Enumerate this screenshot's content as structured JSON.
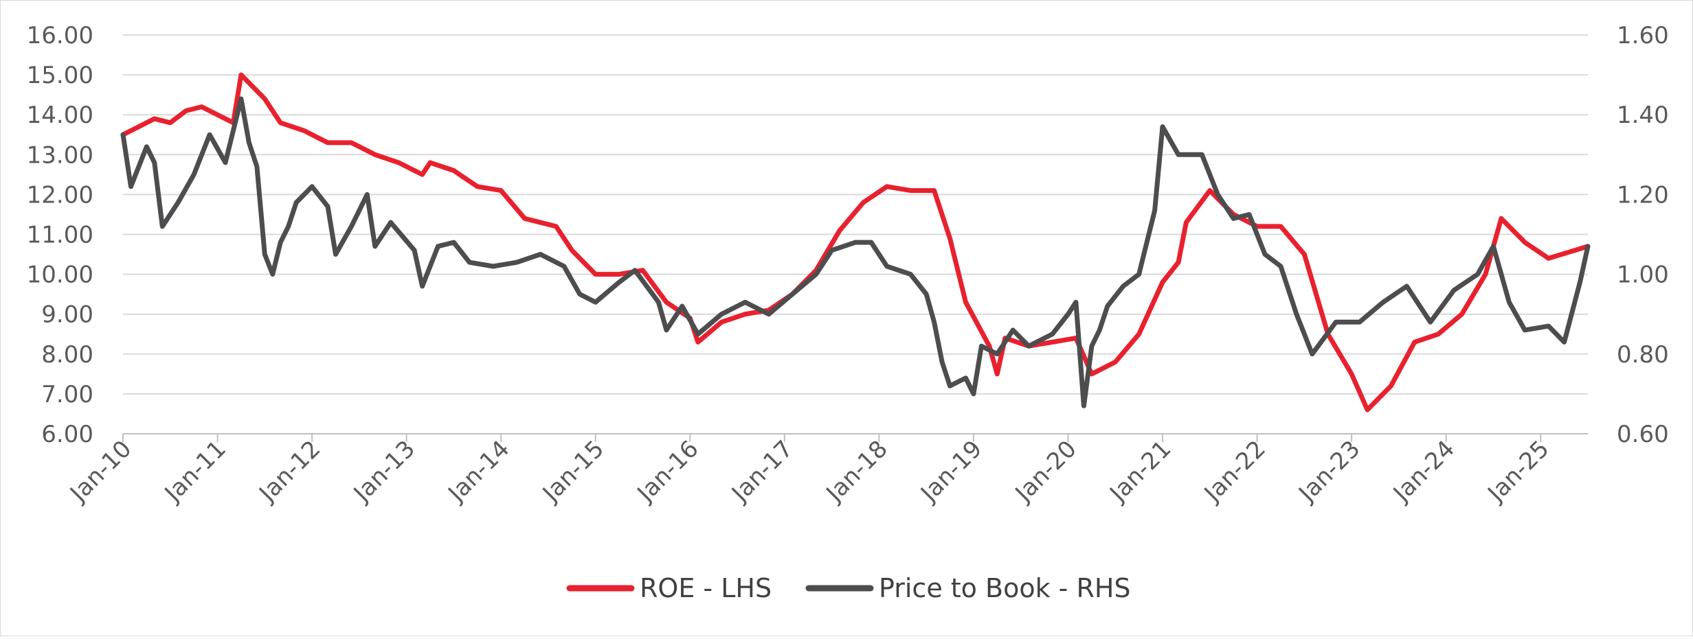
{
  "chart_data": {
    "type": "line",
    "title": "",
    "x_tick_labels": [
      "Jan-10",
      "Jan-11",
      "Jan-12",
      "Jan-13",
      "Jan-14",
      "Jan-15",
      "Jan-16",
      "Jan-17",
      "Jan-18",
      "Jan-19",
      "Jan-20",
      "Jan-21",
      "Jan-22",
      "Jan-23",
      "Jan-24",
      "Jan-25"
    ],
    "x_range": [
      "2010-01",
      "2025-07"
    ],
    "y_left": {
      "ticks": [
        "6.00",
        "7.00",
        "8.00",
        "9.00",
        "10.00",
        "11.00",
        "12.00",
        "13.00",
        "14.00",
        "15.00",
        "16.00"
      ],
      "ylim": [
        6,
        16
      ]
    },
    "y_right": {
      "ticks": [
        "0.60",
        "0.80",
        "1.00",
        "1.20",
        "1.40",
        "1.60"
      ],
      "ylim": [
        0.6,
        1.6
      ]
    },
    "grid": "horizontal",
    "legend_position": "bottom-center",
    "series": [
      {
        "name": "ROE - LHS",
        "axis": "left",
        "color": "#e8212e",
        "points": [
          [
            "2010-01",
            13.5
          ],
          [
            "2010-03",
            13.7
          ],
          [
            "2010-05",
            13.9
          ],
          [
            "2010-07",
            13.8
          ],
          [
            "2010-09",
            14.1
          ],
          [
            "2010-11",
            14.2
          ],
          [
            "2011-01",
            14.0
          ],
          [
            "2011-03",
            13.8
          ],
          [
            "2011-04",
            15.0
          ],
          [
            "2011-05",
            14.8
          ],
          [
            "2011-07",
            14.4
          ],
          [
            "2011-09",
            13.8
          ],
          [
            "2011-12",
            13.6
          ],
          [
            "2012-03",
            13.3
          ],
          [
            "2012-06",
            13.3
          ],
          [
            "2012-09",
            13.0
          ],
          [
            "2012-12",
            12.8
          ],
          [
            "2013-03",
            12.5
          ],
          [
            "2013-04",
            12.8
          ],
          [
            "2013-07",
            12.6
          ],
          [
            "2013-10",
            12.2
          ],
          [
            "2014-01",
            12.1
          ],
          [
            "2014-04",
            11.4
          ],
          [
            "2014-08",
            11.2
          ],
          [
            "2014-10",
            10.6
          ],
          [
            "2015-01",
            10.0
          ],
          [
            "2015-04",
            10.0
          ],
          [
            "2015-07",
            10.1
          ],
          [
            "2015-10",
            9.3
          ],
          [
            "2016-01",
            8.9
          ],
          [
            "2016-02",
            8.3
          ],
          [
            "2016-05",
            8.8
          ],
          [
            "2016-08",
            9.0
          ],
          [
            "2016-11",
            9.1
          ],
          [
            "2017-02",
            9.5
          ],
          [
            "2017-05",
            10.1
          ],
          [
            "2017-08",
            11.1
          ],
          [
            "2017-11",
            11.8
          ],
          [
            "2018-02",
            12.2
          ],
          [
            "2018-05",
            12.1
          ],
          [
            "2018-08",
            12.1
          ],
          [
            "2018-10",
            10.9
          ],
          [
            "2018-12",
            9.3
          ],
          [
            "2019-03",
            8.2
          ],
          [
            "2019-04",
            7.5
          ],
          [
            "2019-05",
            8.4
          ],
          [
            "2019-08",
            8.2
          ],
          [
            "2019-11",
            8.3
          ],
          [
            "2020-02",
            8.4
          ],
          [
            "2020-04",
            7.5
          ],
          [
            "2020-07",
            7.8
          ],
          [
            "2020-10",
            8.5
          ],
          [
            "2021-01",
            9.8
          ],
          [
            "2021-03",
            10.3
          ],
          [
            "2021-04",
            11.3
          ],
          [
            "2021-07",
            12.1
          ],
          [
            "2021-10",
            11.5
          ],
          [
            "2022-01",
            11.2
          ],
          [
            "2022-04",
            11.2
          ],
          [
            "2022-07",
            10.5
          ],
          [
            "2022-10",
            8.5
          ],
          [
            "2023-01",
            7.5
          ],
          [
            "2023-03",
            6.6
          ],
          [
            "2023-06",
            7.2
          ],
          [
            "2023-09",
            8.3
          ],
          [
            "2023-12",
            8.5
          ],
          [
            "2024-03",
            9.0
          ],
          [
            "2024-06",
            10.0
          ],
          [
            "2024-08",
            11.4
          ],
          [
            "2024-11",
            10.8
          ],
          [
            "2025-02",
            10.4
          ],
          [
            "2025-07",
            10.7
          ]
        ]
      },
      {
        "name": "Price to Book - RHS",
        "axis": "right",
        "color": "#4d4d4f",
        "points": [
          [
            "2010-01",
            1.35
          ],
          [
            "2010-02",
            1.22
          ],
          [
            "2010-04",
            1.32
          ],
          [
            "2010-05",
            1.28
          ],
          [
            "2010-06",
            1.12
          ],
          [
            "2010-08",
            1.18
          ],
          [
            "2010-10",
            1.25
          ],
          [
            "2010-12",
            1.35
          ],
          [
            "2011-02",
            1.28
          ],
          [
            "2011-04",
            1.44
          ],
          [
            "2011-05",
            1.33
          ],
          [
            "2011-06",
            1.27
          ],
          [
            "2011-07",
            1.05
          ],
          [
            "2011-08",
            1.0
          ],
          [
            "2011-09",
            1.08
          ],
          [
            "2011-10",
            1.12
          ],
          [
            "2011-11",
            1.18
          ],
          [
            "2012-01",
            1.22
          ],
          [
            "2012-03",
            1.17
          ],
          [
            "2012-04",
            1.05
          ],
          [
            "2012-06",
            1.12
          ],
          [
            "2012-08",
            1.2
          ],
          [
            "2012-09",
            1.07
          ],
          [
            "2012-11",
            1.13
          ],
          [
            "2013-02",
            1.06
          ],
          [
            "2013-03",
            0.97
          ],
          [
            "2013-05",
            1.07
          ],
          [
            "2013-07",
            1.08
          ],
          [
            "2013-09",
            1.03
          ],
          [
            "2013-12",
            1.02
          ],
          [
            "2014-03",
            1.03
          ],
          [
            "2014-06",
            1.05
          ],
          [
            "2014-09",
            1.02
          ],
          [
            "2014-11",
            0.95
          ],
          [
            "2015-01",
            0.93
          ],
          [
            "2015-04",
            0.98
          ],
          [
            "2015-06",
            1.01
          ],
          [
            "2015-09",
            0.93
          ],
          [
            "2015-10",
            0.86
          ],
          [
            "2015-12",
            0.92
          ],
          [
            "2016-02",
            0.85
          ],
          [
            "2016-05",
            0.9
          ],
          [
            "2016-08",
            0.93
          ],
          [
            "2016-11",
            0.9
          ],
          [
            "2017-02",
            0.95
          ],
          [
            "2017-05",
            1.0
          ],
          [
            "2017-07",
            1.06
          ],
          [
            "2017-10",
            1.08
          ],
          [
            "2017-12",
            1.08
          ],
          [
            "2018-02",
            1.02
          ],
          [
            "2018-05",
            1.0
          ],
          [
            "2018-07",
            0.95
          ],
          [
            "2018-08",
            0.88
          ],
          [
            "2018-09",
            0.78
          ],
          [
            "2018-10",
            0.72
          ],
          [
            "2018-12",
            0.74
          ],
          [
            "2019-01",
            0.7
          ],
          [
            "2019-02",
            0.82
          ],
          [
            "2019-04",
            0.8
          ],
          [
            "2019-06",
            0.86
          ],
          [
            "2019-08",
            0.82
          ],
          [
            "2019-11",
            0.85
          ],
          [
            "2020-01",
            0.9
          ],
          [
            "2020-02",
            0.93
          ],
          [
            "2020-03",
            0.67
          ],
          [
            "2020-04",
            0.82
          ],
          [
            "2020-05",
            0.86
          ],
          [
            "2020-06",
            0.92
          ],
          [
            "2020-08",
            0.97
          ],
          [
            "2020-10",
            1.0
          ],
          [
            "2020-12",
            1.16
          ],
          [
            "2021-01",
            1.37
          ],
          [
            "2021-03",
            1.3
          ],
          [
            "2021-06",
            1.3
          ],
          [
            "2021-08",
            1.2
          ],
          [
            "2021-10",
            1.14
          ],
          [
            "2021-12",
            1.15
          ],
          [
            "2022-02",
            1.05
          ],
          [
            "2022-04",
            1.02
          ],
          [
            "2022-06",
            0.9
          ],
          [
            "2022-08",
            0.8
          ],
          [
            "2022-11",
            0.88
          ],
          [
            "2023-02",
            0.88
          ],
          [
            "2023-05",
            0.93
          ],
          [
            "2023-08",
            0.97
          ],
          [
            "2023-11",
            0.88
          ],
          [
            "2024-02",
            0.96
          ],
          [
            "2024-05",
            1.0
          ],
          [
            "2024-07",
            1.07
          ],
          [
            "2024-09",
            0.93
          ],
          [
            "2024-11",
            0.86
          ],
          [
            "2025-02",
            0.87
          ],
          [
            "2025-04",
            0.83
          ],
          [
            "2025-06",
            0.98
          ],
          [
            "2025-07",
            1.07
          ]
        ]
      }
    ]
  }
}
